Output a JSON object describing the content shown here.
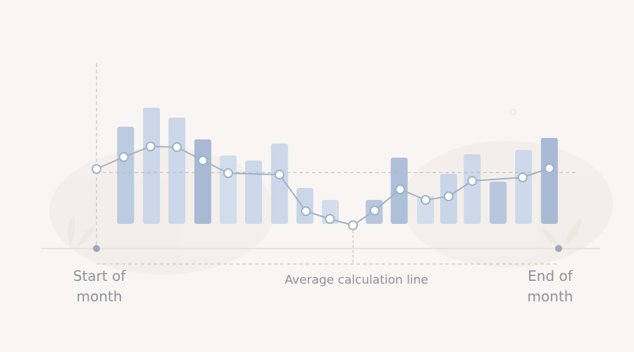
{
  "chart_data": {
    "type": "bar-line",
    "bars": {
      "x": [
        6.3,
        11.9,
        17.4,
        23.0,
        28.5,
        34.0,
        39.6,
        45.1,
        50.6,
        60.1,
        65.5,
        71.2,
        76.2,
        81.3,
        86.9,
        92.4,
        98.0
      ],
      "values": [
        138,
        165,
        151,
        120,
        97,
        90,
        114,
        51,
        34,
        34,
        94,
        39,
        71,
        99,
        60,
        105,
        122
      ],
      "colors": [
        "#bccbe0",
        "#cad7e9",
        "#ccd8e9",
        "#a9b9d5",
        "#d2ddec",
        "#cdd9ea",
        "#ccd8e9",
        "#cbd7e8",
        "#d3ddeb",
        "#b7c7de",
        "#aebfd9",
        "#d3ddeb",
        "#c9d5e8",
        "#cdd9ea",
        "#b8c7de",
        "#cdd9ea",
        "#a9bad6"
      ]
    },
    "line": {
      "color": "#9fb2c6",
      "x": [
        0,
        5.9,
        11.7,
        17.4,
        23.0,
        28.5,
        39.6,
        45.3,
        50.5,
        55.5,
        60.2,
        65.7,
        71.2,
        76.2,
        81.3,
        92.2,
        98.0
      ],
      "values": [
        78,
        95,
        110,
        109,
        90,
        72,
        70,
        18,
        7,
        -2,
        19,
        49,
        34,
        39,
        61,
        66,
        79
      ]
    },
    "average": {
      "label": "Average calculation line",
      "value": 73,
      "x": 55.5
    },
    "xlim": [
      0,
      100
    ],
    "xticks": [
      {
        "value": 0,
        "label": "Start of month"
      },
      {
        "value": 100,
        "label": "End of month"
      }
    ],
    "ylim": [
      0,
      200
    ]
  }
}
